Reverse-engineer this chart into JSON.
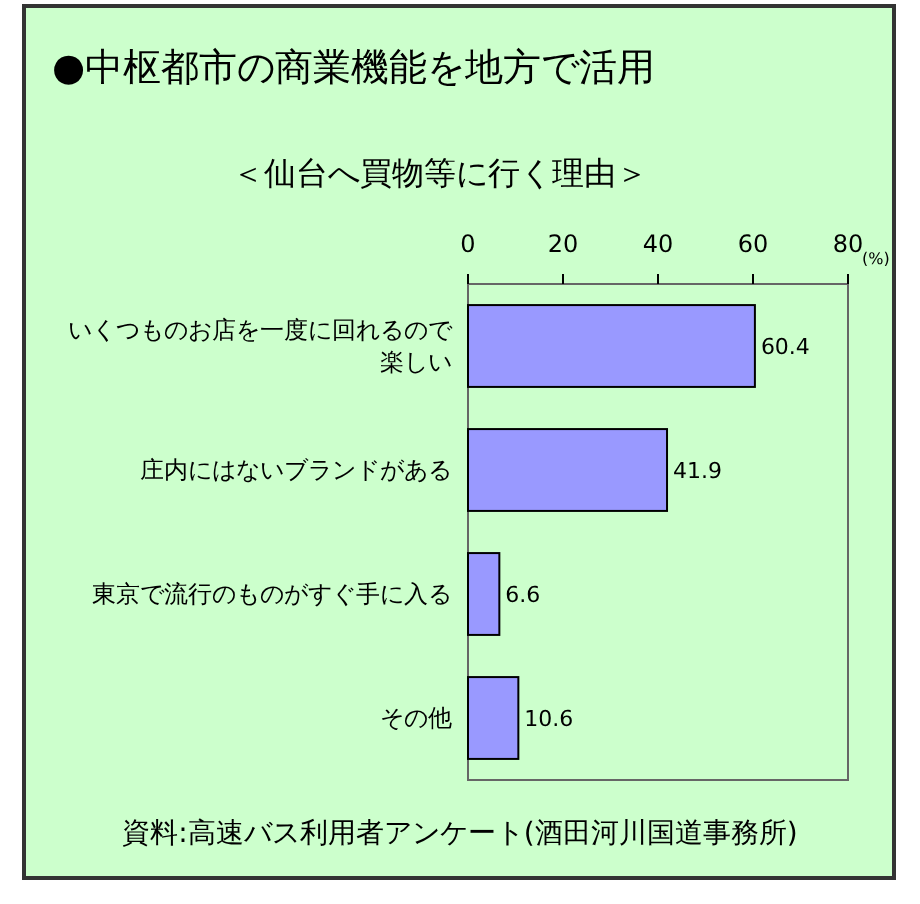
{
  "chart_data": {
    "type": "bar",
    "orientation": "horizontal",
    "title": "●中枢都市の商業機能を地方で活用",
    "subtitle": "＜仙台へ買物等に行く理由＞",
    "xlabel": "(%)",
    "categories": [
      "いくつものお店を一度に回れるので楽しい",
      "庄内にはないブランドがある",
      "東京で流行のものがすぐ手に入る",
      "その他"
    ],
    "series": [
      {
        "color": "#9999ff",
        "values": [
          60.4,
          41.9,
          6.6,
          10.6
        ]
      }
    ],
    "xlim": [
      0,
      80
    ],
    "xticks": [
      0,
      20,
      40,
      60,
      80
    ],
    "data_labels": true,
    "grid": false,
    "annotations": [
      "資料:高速バス利用者アンケート(酒田河川国道事務所)"
    ]
  }
}
